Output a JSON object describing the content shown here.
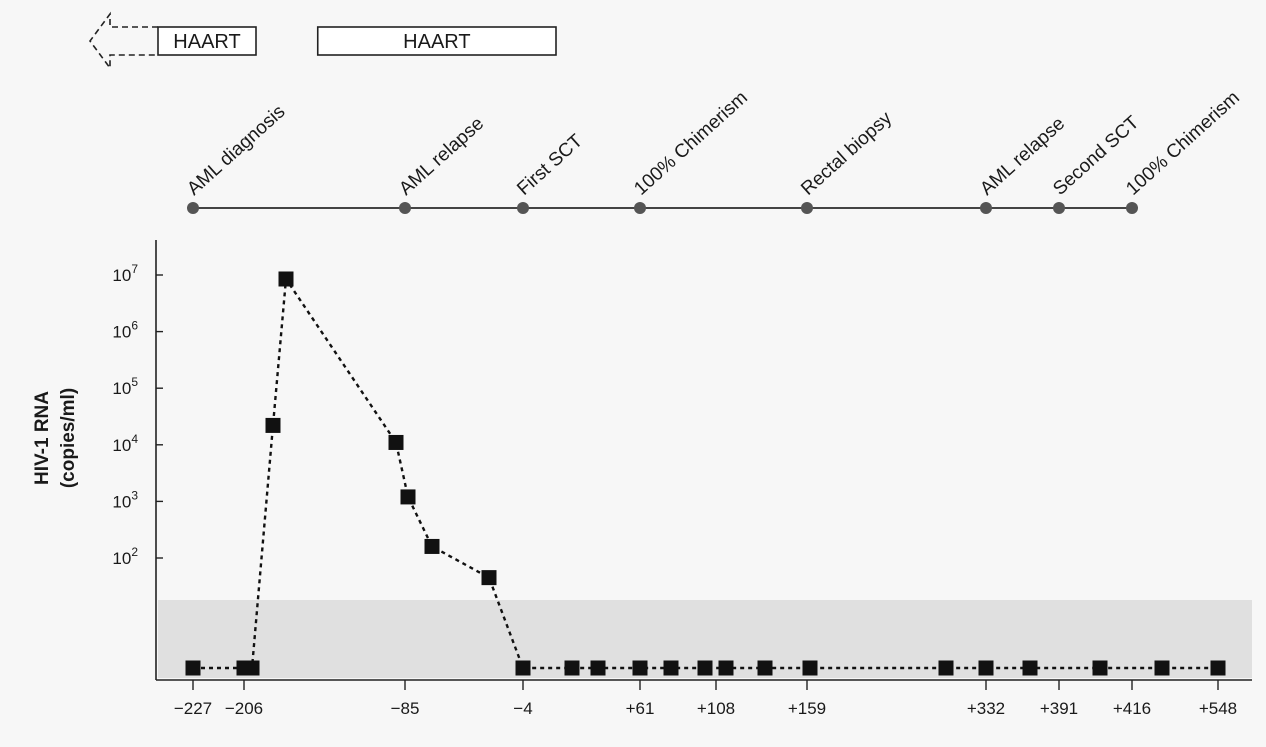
{
  "chart_data": {
    "type": "scatter",
    "ylabel": "HIV-1 RNA",
    "ylabel_units": "(copies/ml)",
    "y_scale": "log",
    "y_ticks": [
      {
        "base": "10",
        "exp": "7",
        "value": 10000000
      },
      {
        "base": "10",
        "exp": "6",
        "value": 1000000
      },
      {
        "base": "10",
        "exp": "5",
        "value": 100000
      },
      {
        "base": "10",
        "exp": "4",
        "value": 10000
      },
      {
        "base": "10",
        "exp": "3",
        "value": 1000
      },
      {
        "base": "10",
        "exp": "2",
        "value": 100
      }
    ],
    "x_tick_labels": [
      "−227",
      "−206",
      "−85",
      "−4",
      "+61",
      "+108",
      "+159",
      "+332",
      "+391",
      "+416",
      "+548"
    ],
    "x_tick_values": [
      -227,
      -206,
      -85,
      -4,
      61,
      108,
      159,
      332,
      391,
      416,
      548
    ],
    "detection_band": {
      "color": "#e0e0e0"
    },
    "series": [
      {
        "line_style": "dotted",
        "color": "#111111",
        "points": [
          {
            "x": -227,
            "y": null
          },
          {
            "x": -206,
            "y": null
          },
          {
            "x": -202,
            "y": null
          },
          {
            "x": -194,
            "y": 22000
          },
          {
            "x": -188,
            "y": 8500000
          },
          {
            "x": -91,
            "y": 11000
          },
          {
            "x": -84,
            "y": 1200
          },
          {
            "x": -70,
            "y": 160
          },
          {
            "x": -26,
            "y": 45
          },
          {
            "x": -4,
            "y": null
          },
          {
            "x": 24,
            "y": null
          },
          {
            "x": 40,
            "y": null
          },
          {
            "x": 61,
            "y": null
          },
          {
            "x": 81,
            "y": null
          },
          {
            "x": 101,
            "y": null
          },
          {
            "x": 112,
            "y": null
          },
          {
            "x": 136,
            "y": null
          },
          {
            "x": 161,
            "y": null
          },
          {
            "x": 286,
            "y": null
          },
          {
            "x": 332,
            "y": null
          },
          {
            "x": 369,
            "y": null
          },
          {
            "x": 428,
            "y": null
          },
          {
            "x": 500,
            "y": null
          },
          {
            "x": 548,
            "y": null
          }
        ]
      }
    ],
    "haart": [
      {
        "label": "HAART",
        "start": -206,
        "end": -206,
        "continues_before": true
      },
      {
        "label": "HAART",
        "start": -175,
        "end": -4,
        "continues_before": false
      }
    ],
    "events": [
      {
        "label": "AML diagnosis",
        "day": -227
      },
      {
        "label": "AML relapse",
        "day": -85
      },
      {
        "label": "First SCT",
        "day": -4
      },
      {
        "label": "100% Chimerism",
        "day": 61
      },
      {
        "label": "Rectal biopsy",
        "day": 159
      },
      {
        "label": "AML relapse",
        "day": 332
      },
      {
        "label": "Second SCT",
        "day": 391
      },
      {
        "label": "100% Chimerism",
        "day": 416
      }
    ]
  }
}
